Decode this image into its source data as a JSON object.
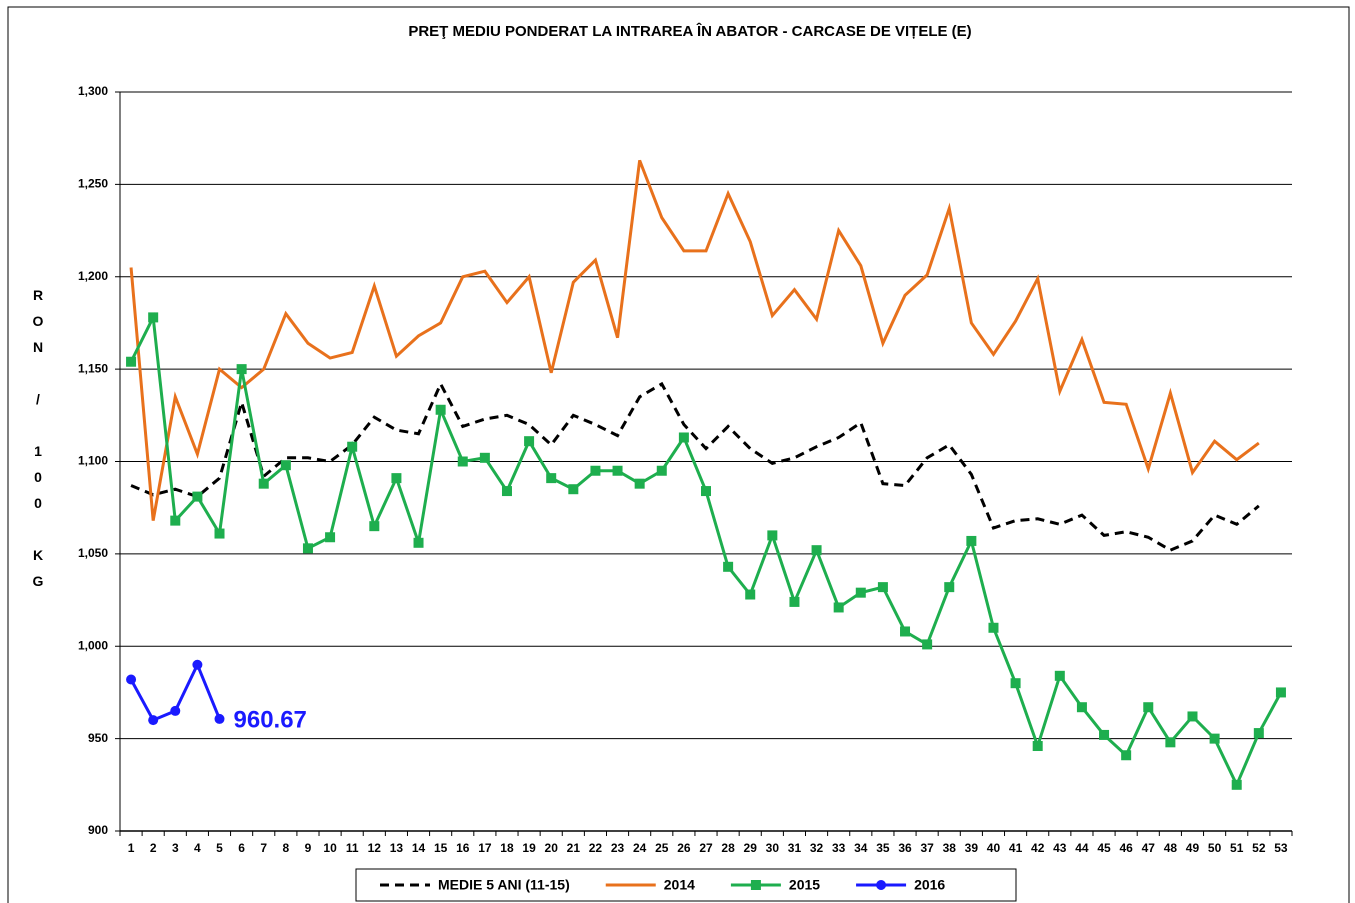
{
  "chart_data": {
    "type": "line",
    "title": "PREŢ MEDIU PONDERAT LA INTRAREA ÎN ABATOR - CARCASE DE VIȚELE (E)",
    "y_label": "RON / 100 KG",
    "categories": [
      1,
      2,
      3,
      4,
      5,
      6,
      7,
      8,
      9,
      10,
      11,
      12,
      13,
      14,
      15,
      16,
      17,
      18,
      19,
      20,
      21,
      22,
      23,
      24,
      25,
      26,
      27,
      28,
      29,
      30,
      31,
      32,
      33,
      34,
      35,
      36,
      37,
      38,
      39,
      40,
      41,
      42,
      43,
      44,
      45,
      46,
      47,
      48,
      49,
      50,
      51,
      52,
      53
    ],
    "ylim": [
      900,
      1300
    ],
    "yticks": [
      900,
      950,
      {
        "value": 1000,
        "label": "1,000"
      },
      {
        "value": 1050,
        "label": "1,050"
      },
      {
        "value": 1100,
        "label": "1,100"
      },
      {
        "value": 1150,
        "label": "1,150"
      },
      {
        "value": 1200,
        "label": "1,200"
      },
      {
        "value": 1250,
        "label": "1,250"
      },
      {
        "value": 1300,
        "label": "1,300"
      }
    ],
    "grid": true,
    "legend": "bottom",
    "series": [
      {
        "name": "MEDIE 5 ANI (11-15)",
        "color": "#000000",
        "style": "dashed",
        "marker": null,
        "values": [
          1087,
          1082,
          1085,
          1081,
          1091,
          1132,
          1092,
          1102,
          1102,
          1100,
          1109,
          1124,
          1117,
          1115,
          1142,
          1119,
          1123,
          1125,
          1120,
          1109,
          1125,
          1120,
          1114,
          1135,
          1142,
          1120,
          1107,
          1119,
          1107,
          1099,
          1102,
          1108,
          1113,
          1121,
          1088,
          1087,
          1102,
          1109,
          1093,
          1064,
          1068,
          1069,
          1066,
          1071,
          1060,
          1062,
          1059,
          1052,
          1057,
          1071,
          1066,
          1076,
          null
        ]
      },
      {
        "name": "2014",
        "color": "#e8711c",
        "style": "solid",
        "marker": null,
        "values": [
          1205,
          1068,
          1135,
          1104,
          1150,
          1140,
          1150,
          1180,
          1164,
          1156,
          1159,
          1195,
          1157,
          1168,
          1175,
          1200,
          1203,
          1186,
          1200,
          1148,
          1197,
          1209,
          1167,
          1263,
          1232,
          1214,
          1214,
          1245,
          1219,
          1179,
          1193,
          1177,
          1225,
          1206,
          1164,
          1190,
          1201,
          1237,
          1175,
          1158,
          1176,
          1199,
          1138,
          1166,
          1132,
          1131,
          1096,
          1137,
          1094,
          1111,
          1101,
          1110,
          null
        ]
      },
      {
        "name": "2015",
        "color": "#1eae4e",
        "style": "solid",
        "marker": "square",
        "values": [
          1154,
          1178,
          1068,
          1081,
          1061,
          1150,
          1088,
          1098,
          1053,
          1059,
          1108,
          1065,
          1091,
          1056,
          1128,
          1100,
          1102,
          1084,
          1111,
          1091,
          1085,
          1095,
          1095,
          1088,
          1095,
          1113,
          1084,
          1043,
          1028,
          1060,
          1024,
          1052,
          1021,
          1029,
          1032,
          1008,
          1001,
          1032,
          1057,
          1010,
          980,
          946,
          984,
          967,
          952,
          941,
          967,
          948,
          962,
          950,
          925,
          953,
          975
        ]
      },
      {
        "name": "2016",
        "color": "#1a1aff",
        "style": "solid",
        "marker": "circle",
        "label_last": true,
        "values": [
          982,
          960,
          965,
          990,
          960.67,
          null,
          null,
          null,
          null,
          null,
          null,
          null,
          null,
          null,
          null,
          null,
          null,
          null,
          null,
          null,
          null,
          null,
          null,
          null,
          null,
          null,
          null,
          null,
          null,
          null,
          null,
          null,
          null,
          null,
          null,
          null,
          null,
          null,
          null,
          null,
          null,
          null,
          null,
          null,
          null,
          null,
          null,
          null,
          null,
          null,
          null,
          null,
          null
        ]
      }
    ]
  }
}
